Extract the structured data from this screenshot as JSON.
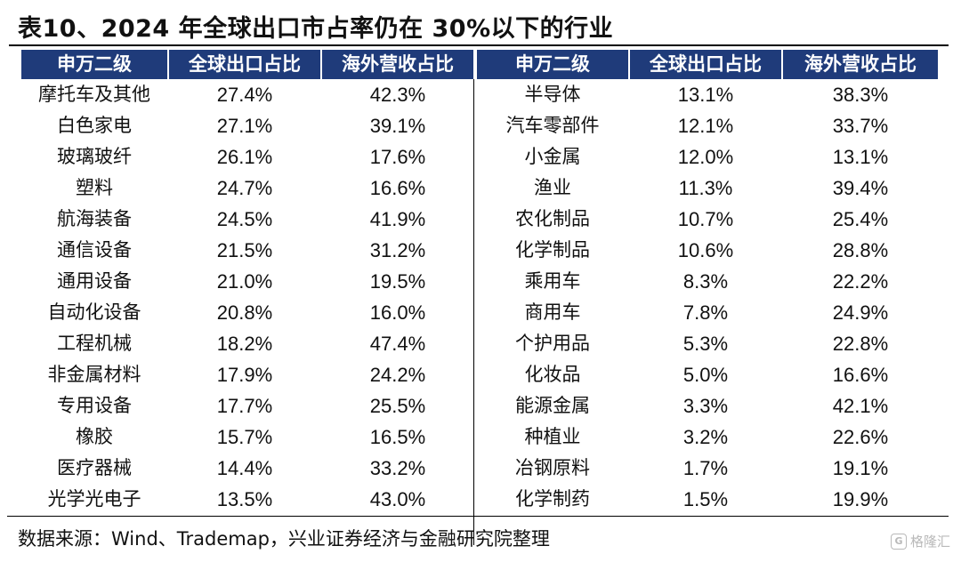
{
  "title": "表10、2024 年全球出口市占率仍在 30%以下的行业",
  "headers": [
    "申万二级",
    "全球出口占比",
    "海外营收占比",
    "申万二级",
    "全球出口占比",
    "海外营收占比"
  ],
  "rows": [
    [
      "摩托车及其他",
      "27.4%",
      "42.3%",
      "半导体",
      "13.1%",
      "38.3%"
    ],
    [
      "白色家电",
      "27.1%",
      "39.1%",
      "汽车零部件",
      "12.1%",
      "33.7%"
    ],
    [
      "玻璃玻纤",
      "26.1%",
      "17.6%",
      "小金属",
      "12.0%",
      "13.1%"
    ],
    [
      "塑料",
      "24.7%",
      "16.6%",
      "渔业",
      "11.3%",
      "39.4%"
    ],
    [
      "航海装备",
      "24.5%",
      "41.9%",
      "农化制品",
      "10.7%",
      "25.4%"
    ],
    [
      "通信设备",
      "21.5%",
      "31.2%",
      "化学制品",
      "10.6%",
      "28.8%"
    ],
    [
      "通用设备",
      "21.0%",
      "19.5%",
      "乘用车",
      "8.3%",
      "22.2%"
    ],
    [
      "自动化设备",
      "20.8%",
      "16.0%",
      "商用车",
      "7.8%",
      "24.9%"
    ],
    [
      "工程机械",
      "18.2%",
      "47.4%",
      "个护用品",
      "5.3%",
      "22.8%"
    ],
    [
      "非金属材料",
      "17.9%",
      "24.2%",
      "化妆品",
      "5.0%",
      "16.6%"
    ],
    [
      "专用设备",
      "17.7%",
      "25.5%",
      "能源金属",
      "3.3%",
      "42.1%"
    ],
    [
      "橡胶",
      "15.7%",
      "16.5%",
      "种植业",
      "3.2%",
      "22.6%"
    ],
    [
      "医疗器械",
      "14.4%",
      "33.2%",
      "冶钢原料",
      "1.7%",
      "19.1%"
    ],
    [
      "光学光电子",
      "13.5%",
      "43.0%",
      "化学制药",
      "1.5%",
      "19.9%"
    ]
  ],
  "source": "数据来源：Wind、Trademap，兴业证券经济与金融研究院整理",
  "watermark": {
    "icon": "G",
    "text": "格隆汇"
  },
  "colors": {
    "header_bg": "#1f3b7a",
    "header_text": "#ffffff"
  }
}
